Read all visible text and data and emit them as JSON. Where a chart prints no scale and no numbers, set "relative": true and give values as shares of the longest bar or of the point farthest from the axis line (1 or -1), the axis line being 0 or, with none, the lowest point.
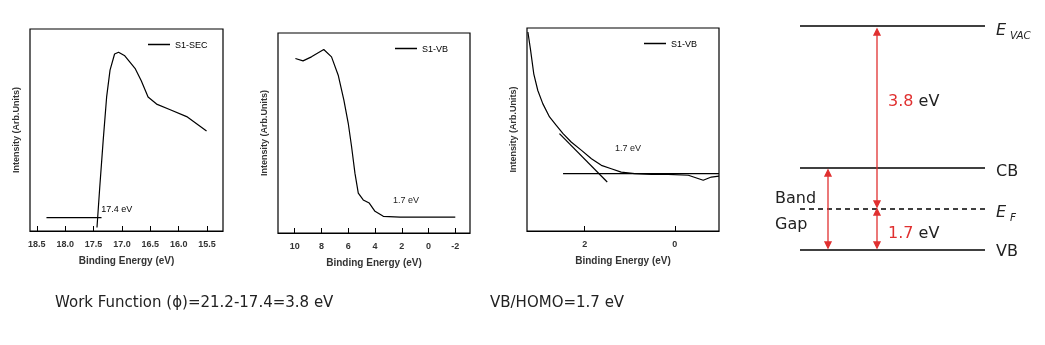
{
  "chart_data": [
    {
      "type": "line",
      "xlabel": "Binding Energy (eV)",
      "ylabel": "Intensity (Arb.Units)",
      "relative": true,
      "marker": "none",
      "legend": "top right",
      "xlim": [
        18.62,
        15.22
      ],
      "xticks": [
        {
          "value": 18.5,
          "label": "18.5"
        },
        {
          "value": 18,
          "label": "18.0"
        },
        {
          "value": 17.5,
          "label": "17.5"
        },
        {
          "value": 17,
          "label": "17.0"
        },
        {
          "value": 16.5,
          "label": "16.5"
        },
        {
          "value": 16,
          "label": "16.0"
        },
        {
          "value": 15.5,
          "label": "15.5"
        }
      ],
      "series": [
        {
          "name": "S1-SEC",
          "color": "#000000",
          "x": [
            17.44,
            17.39,
            17.33,
            17.27,
            17.21,
            17.13,
            17.06,
            16.95,
            16.77,
            16.66,
            16.54,
            16.39,
            16.16,
            15.86,
            15.51
          ],
          "values": [
            0.02,
            0.25,
            0.51,
            0.75,
            0.9,
            0.99,
            1.0,
            0.98,
            0.91,
            0.84,
            0.75,
            0.71,
            0.68,
            0.64,
            0.56
          ]
        },
        {
          "type": "line",
          "color": "#000000",
          "x": [
            18.33,
            17.36
          ],
          "values": [
            0.075,
            0.075
          ]
        }
      ],
      "annotations": [
        {
          "text": "17.4 eV",
          "x": 17.4,
          "y": 0.075
        },
        "Work Function (ϕ)=21.2-17.4=3.8 eV"
      ]
    },
    {
      "type": "line",
      "xlabel": "Binding Energy (eV)",
      "ylabel": "Intensity (Arb.Units)",
      "relative": true,
      "marker": "none",
      "legend": "top right",
      "xlim": [
        11.25,
        -3.1
      ],
      "xticks": [
        10,
        8,
        6,
        4,
        2,
        0,
        -2
      ],
      "series": [
        {
          "name": "S1-VB",
          "color": "#000000",
          "x": [
            9.95,
            9.38,
            8.75,
            7.83,
            7.25,
            6.75,
            6.33,
            6.0,
            5.75,
            5.5,
            5.25,
            4.88,
            4.43,
            4.0,
            3.38,
            2.13,
            -2.0
          ],
          "values": [
            0.951,
            0.938,
            0.96,
            1.0,
            0.96,
            0.86,
            0.725,
            0.598,
            0.47,
            0.326,
            0.217,
            0.18,
            0.163,
            0.118,
            0.091,
            0.087,
            0.087
          ]
        }
      ],
      "annotations": [
        "1.7 eV"
      ]
    },
    {
      "type": "line",
      "xlabel": "Binding Energy (eV)",
      "ylabel": "Intensity (Arb.Units)",
      "relative": true,
      "marker": "none",
      "legend": "top right",
      "xlim": [
        3.28,
        -0.98
      ],
      "xticks": [
        2,
        0
      ],
      "series": [
        {
          "name": "S1-VB",
          "color": "#000000",
          "x": [
            3.26,
            3.2,
            3.13,
            3.04,
            2.93,
            2.78,
            2.63,
            2.48,
            2.3,
            2.07,
            1.85,
            1.63,
            1.41,
            1.19,
            0.89,
            0.52,
            0.15,
            -0.3,
            -0.63,
            -0.81,
            -0.98
          ],
          "values": [
            1.0,
            0.908,
            0.79,
            0.706,
            0.64,
            0.573,
            0.531,
            0.489,
            0.447,
            0.405,
            0.363,
            0.33,
            0.313,
            0.296,
            0.288,
            0.285,
            0.285,
            0.28,
            0.255,
            0.271,
            0.276
          ]
        },
        {
          "type": "line",
          "color": "#000000",
          "x": [
            2.48,
            -0.98
          ],
          "values": [
            0.288,
            0.288
          ]
        },
        {
          "type": "line",
          "color": "#000000",
          "x": [
            2.56,
            1.5
          ],
          "values": [
            0.489,
            0.246
          ]
        }
      ],
      "annotations": [
        "1.7 eV",
        "VB/HOMO=1.7 eV"
      ]
    },
    {
      "type": "other",
      "annotations": [
        "E$_{VAC}$",
        "CB",
        "E$_{F}$",
        "VB",
        "Band Gap",
        "3.8 eV",
        "1.7 eV"
      ]
    }
  ]
}
